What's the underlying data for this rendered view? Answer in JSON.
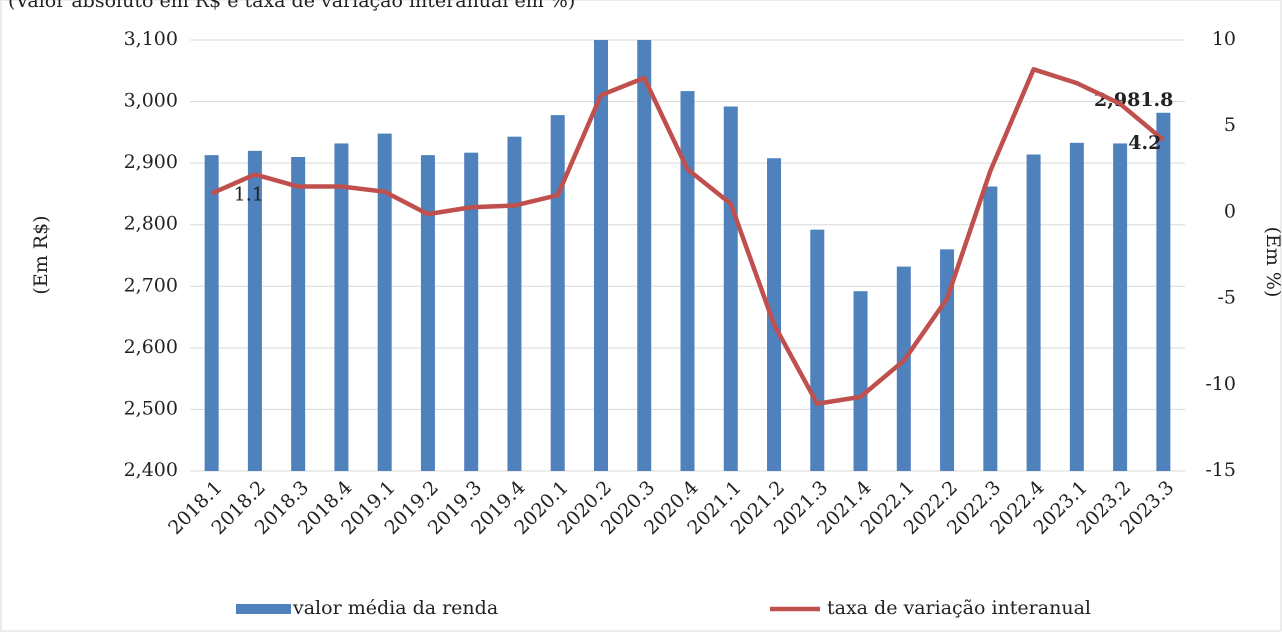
{
  "chart_data": {
    "type": "bar-line",
    "subtitle": "(Valor absoluto em R$ e taxa de variação interanual em %)",
    "y_label": "(Em R$)",
    "y2_label": "(Em %)",
    "categories": [
      "2018.1",
      "2018.2",
      "2018.3",
      "2018.4",
      "2019.1",
      "2019.2",
      "2019.3",
      "2019.4",
      "2020.1",
      "2020.2",
      "2020.3",
      "2020.4",
      "2021.1",
      "2021.2",
      "2021.3",
      "2021.4",
      "2022.1",
      "2022.2",
      "2022.3",
      "2022.4",
      "2023.1",
      "2023.2",
      "2023.3"
    ],
    "series": [
      {
        "name": "valor média da renda",
        "type": "bar",
        "color": "#4f81bd",
        "values": [
          2913,
          2920,
          2910,
          2932,
          2948,
          2913,
          2917,
          2943,
          2978,
          3160,
          3150,
          3017,
          2992,
          2908,
          2792,
          2692,
          2732,
          2760,
          2862,
          2914,
          2933,
          2932,
          2981.8
        ],
        "value_labels": [
          null,
          null,
          null,
          null,
          null,
          null,
          null,
          null,
          null,
          null,
          null,
          null,
          null,
          null,
          null,
          null,
          null,
          null,
          null,
          null,
          null,
          null,
          "2,981.8"
        ]
      },
      {
        "name": "taxa de variação interanual",
        "type": "line",
        "axis": "y2",
        "color": "#c0504d",
        "values": [
          1.1,
          2.2,
          1.5,
          1.5,
          1.2,
          -0.1,
          0.3,
          0.4,
          1.0,
          6.8,
          7.8,
          2.5,
          0.5,
          -6.5,
          -11.1,
          -10.7,
          -8.6,
          -5.0,
          2.4,
          8.3,
          7.5,
          6.3,
          4.2
        ],
        "value_labels": [
          "1.1",
          null,
          null,
          null,
          null,
          null,
          null,
          null,
          null,
          null,
          null,
          null,
          null,
          null,
          null,
          null,
          null,
          null,
          null,
          null,
          null,
          null,
          "4.2"
        ]
      }
    ],
    "ylim": [
      2400,
      3100
    ],
    "yticks": [
      {
        "value": 2400,
        "label": "2,400"
      },
      {
        "value": 2500,
        "label": "2,500"
      },
      {
        "value": 2600,
        "label": "2,600"
      },
      {
        "value": 2700,
        "label": "2,700"
      },
      {
        "value": 2800,
        "label": "2,800"
      },
      {
        "value": 2900,
        "label": "2,900"
      },
      {
        "value": 3000,
        "label": "3,000"
      },
      {
        "value": 3100,
        "label": "3,100"
      }
    ],
    "y2lim": [
      -15,
      10
    ],
    "y2ticks": [
      -15,
      -10,
      -5,
      0,
      5,
      10
    ],
    "grid": true
  }
}
